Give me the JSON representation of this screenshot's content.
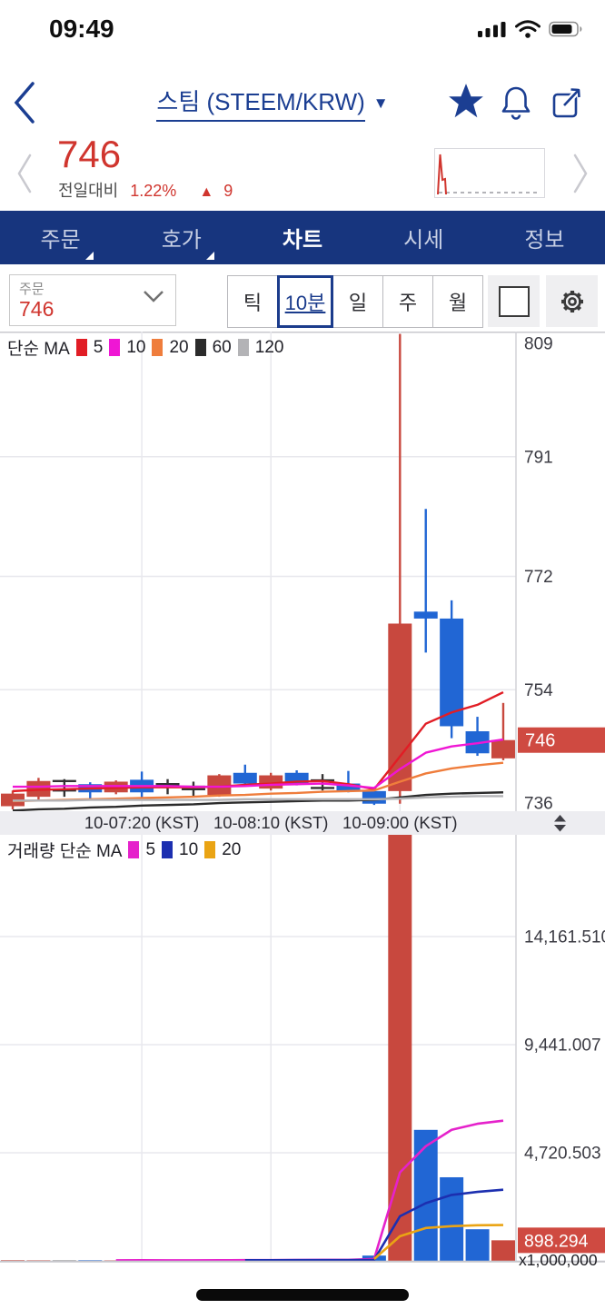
{
  "status_bar": {
    "time": "09:49"
  },
  "header": {
    "title": "스팀 (STEEM/KRW)",
    "caret": "▼"
  },
  "price_summary": {
    "price": "746",
    "change_label": "전일대비",
    "change_pct": "1.22%",
    "arrow": "▲",
    "change_amount": "9"
  },
  "nav": {
    "items": [
      {
        "label": "주문",
        "has_sub": true
      },
      {
        "label": "호가",
        "has_sub": true
      },
      {
        "label": "차트",
        "active": true
      },
      {
        "label": "시세"
      },
      {
        "label": "정보"
      }
    ]
  },
  "toolbar": {
    "order_label": "주문",
    "order_value": "746",
    "intervals": [
      "틱",
      "10분",
      "일",
      "주",
      "월"
    ],
    "selected_interval": "10분"
  },
  "price_legend": {
    "title": "단순 MA",
    "items": [
      {
        "label": "5",
        "color": "#e11d25"
      },
      {
        "label": "10",
        "color": "#ef16d4"
      },
      {
        "label": "20",
        "color": "#ef7d3c"
      },
      {
        "label": "60",
        "color": "#2b2b2b"
      },
      {
        "label": "120",
        "color": "#b3b3b6"
      }
    ]
  },
  "volume_legend": {
    "title": "거래량 단순 MA",
    "items": [
      {
        "label": "5",
        "color": "#e522cb"
      },
      {
        "label": "10",
        "color": "#1c2fb0"
      },
      {
        "label": "20",
        "color": "#eaa414"
      }
    ]
  },
  "chart_data": {
    "type": "candlestick_with_volume",
    "interval": "10분",
    "colors": {
      "up": "#c8483e",
      "down": "#2166d4",
      "even": "#333333",
      "badge": "#cf4a41",
      "grid": "#e8e8ed",
      "axis": "#d2d2d7"
    },
    "x_axis": {
      "labels": [
        {
          "index": 5,
          "text": "10-07:20 (KST)"
        },
        {
          "index": 10,
          "text": "10-08:10 (KST)"
        },
        {
          "index": 15,
          "text": "10-09:00 (KST)"
        }
      ]
    },
    "price_pane": {
      "y_ticks": [
        {
          "label": "809",
          "value": 809
        },
        {
          "label": "791",
          "value": 791
        },
        {
          "label": "772",
          "value": 772
        },
        {
          "label": "754",
          "value": 754
        },
        {
          "label": "736",
          "value": 736
        }
      ],
      "current_price": 746,
      "current_price_label": "746",
      "ma_series": [
        {
          "name": "MA5",
          "color": "#e11d25",
          "values": [
            737.9,
            738.1,
            738.2,
            738.3,
            738.4,
            738.5,
            738.5,
            738.5,
            738.6,
            738.9,
            739.1,
            739.4,
            739.5,
            739.0,
            738.2,
            743.4,
            748.6,
            750.4,
            751.6,
            753.6
          ]
        },
        {
          "name": "MA10",
          "color": "#ef16d4",
          "values": [
            738.6,
            738.6,
            738.7,
            738.7,
            738.7,
            738.7,
            738.7,
            738.6,
            738.6,
            738.7,
            738.9,
            739.0,
            739.1,
            738.8,
            738.4,
            741.4,
            744.0,
            745.0,
            745.5,
            746.1
          ]
        },
        {
          "name": "MA20",
          "color": "#ef7d3c",
          "values": [
            736.3,
            736.4,
            736.5,
            736.6,
            736.7,
            736.8,
            736.9,
            737.0,
            737.2,
            737.3,
            737.5,
            737.6,
            737.8,
            737.9,
            738.0,
            739.4,
            740.7,
            741.5,
            742.0,
            742.4
          ]
        },
        {
          "name": "MA60",
          "color": "#2b2b2b",
          "values": [
            734.8,
            735.0,
            735.1,
            735.3,
            735.4,
            735.6,
            735.7,
            735.8,
            736.0,
            736.1,
            736.2,
            736.3,
            736.4,
            736.4,
            736.5,
            736.9,
            737.3,
            737.5,
            737.6,
            737.7
          ]
        },
        {
          "name": "MA120",
          "color": "#b3b3b6",
          "values": [
            736.4,
            736.4,
            736.4,
            736.5,
            736.5,
            736.5,
            736.5,
            736.5,
            736.5,
            736.6,
            736.6,
            736.6,
            736.6,
            736.6,
            736.6,
            736.7,
            736.9,
            737.0,
            737.1,
            737.1
          ]
        }
      ]
    },
    "volume_pane": {
      "unit_label": "x1,000,000",
      "y_ticks": [
        {
          "label": "14,161.510",
          "value": 14161.51
        },
        {
          "label": "9,441.007",
          "value": 9441.007
        },
        {
          "label": "4,720.503",
          "value": 4720.503
        }
      ],
      "current_volume": 898.294,
      "current_volume_label": "898.294",
      "ma_series": [
        {
          "name": "MA5",
          "color": "#e522cb",
          "values": [
            null,
            null,
            null,
            null,
            25,
            26,
            25,
            24,
            27,
            31,
            34,
            39,
            42,
            45,
            83,
            3863,
            5006,
            5722,
            5986,
            6120
          ]
        },
        {
          "name": "MA10",
          "color": "#1c2fb0",
          "values": [
            null,
            null,
            null,
            null,
            null,
            null,
            null,
            null,
            null,
            28,
            30,
            32,
            32,
            34,
            41,
            1948,
            2519,
            2879,
            3013,
            3106
          ]
        },
        {
          "name": "MA20",
          "color": "#eaa414",
          "values": [
            null,
            null,
            null,
            null,
            null,
            null,
            null,
            null,
            null,
            null,
            null,
            null,
            null,
            null,
            80,
            1075,
            1434,
            1514,
            1554,
            1565
          ]
        }
      ]
    },
    "candles": [
      {
        "o": 735.5,
        "h": 738.0,
        "l": 735.0,
        "c": 737.5,
        "v": 30,
        "dir": "up"
      },
      {
        "o": 737.0,
        "h": 740.0,
        "l": 736.5,
        "c": 739.5,
        "v": 25,
        "dir": "up"
      },
      {
        "o": 739.5,
        "h": 739.8,
        "l": 737.0,
        "c": 738.0,
        "v": 20,
        "dir": "even"
      },
      {
        "o": 739.0,
        "h": 739.3,
        "l": 736.5,
        "c": 737.7,
        "v": 28,
        "dir": "down"
      },
      {
        "o": 737.7,
        "h": 739.6,
        "l": 737.4,
        "c": 739.4,
        "v": 22,
        "dir": "up"
      },
      {
        "o": 739.7,
        "h": 741.0,
        "l": 736.6,
        "c": 737.7,
        "v": 35,
        "dir": "down"
      },
      {
        "o": 739.0,
        "h": 739.8,
        "l": 737.4,
        "c": 738.6,
        "v": 18,
        "dir": "even"
      },
      {
        "o": 738.6,
        "h": 739.4,
        "l": 736.9,
        "c": 738.2,
        "v": 15,
        "dir": "even"
      },
      {
        "o": 737.3,
        "h": 740.6,
        "l": 737.0,
        "c": 740.4,
        "v": 45,
        "dir": "up"
      },
      {
        "o": 740.8,
        "h": 742.1,
        "l": 738.8,
        "c": 739.1,
        "v": 40,
        "dir": "down"
      },
      {
        "o": 738.3,
        "h": 740.8,
        "l": 738.0,
        "c": 740.4,
        "v": 50,
        "dir": "up"
      },
      {
        "o": 740.8,
        "h": 741.2,
        "l": 738.8,
        "c": 739.1,
        "v": 45,
        "dir": "down"
      },
      {
        "o": 739.6,
        "h": 740.6,
        "l": 738.0,
        "c": 738.4,
        "v": 30,
        "dir": "even"
      },
      {
        "o": 739.1,
        "h": 741.1,
        "l": 737.7,
        "c": 737.9,
        "v": 60,
        "dir": "down"
      },
      {
        "o": 737.9,
        "h": 738.1,
        "l": 735.7,
        "c": 735.9,
        "v": 230,
        "dir": "down"
      },
      {
        "o": 737.9,
        "h": 810.5,
        "l": 735.9,
        "c": 764.5,
        "v": 18950,
        "dir": "up"
      },
      {
        "o": 766.4,
        "h": 782.7,
        "l": 759.9,
        "c": 765.3,
        "v": 5720,
        "dir": "down"
      },
      {
        "o": 765.3,
        "h": 768.2,
        "l": 746.3,
        "c": 748.2,
        "v": 3650,
        "dir": "down"
      },
      {
        "o": 747.4,
        "h": 749.7,
        "l": 743.5,
        "c": 743.9,
        "v": 1380,
        "dir": "down"
      },
      {
        "o": 743.1,
        "h": 751.9,
        "l": 742.8,
        "c": 746.0,
        "v": 898.294,
        "dir": "up"
      }
    ]
  }
}
